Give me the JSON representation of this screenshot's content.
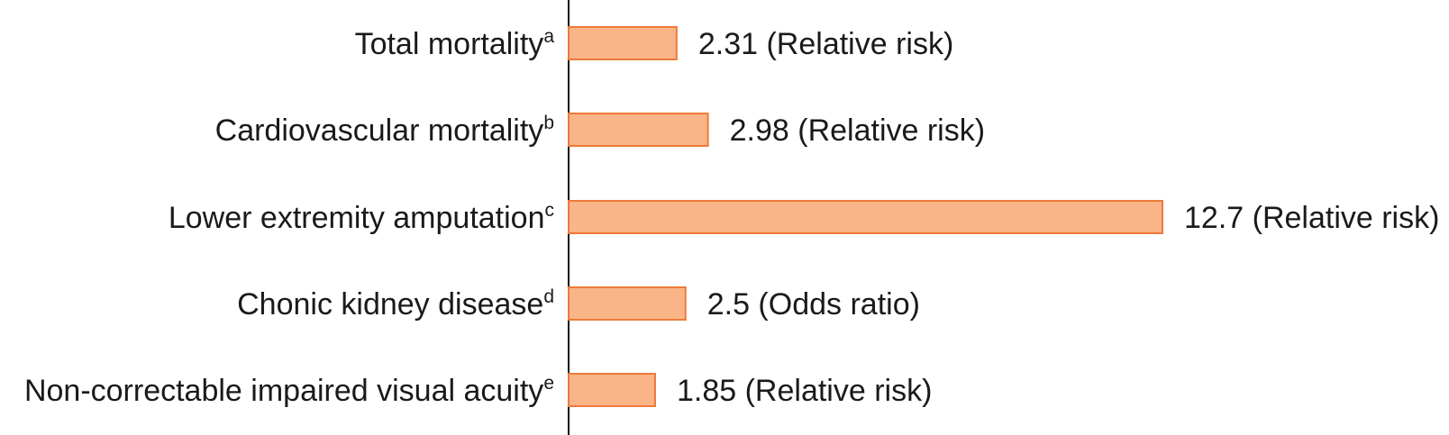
{
  "colors": {
    "bar_fill": "#f9b587",
    "bar_stroke": "#ee7a3b",
    "axis": "#111111",
    "text": "#1a1a1a"
  },
  "chart_data": {
    "type": "bar",
    "orientation": "horizontal",
    "title": "",
    "xlabel": "",
    "ylabel": "",
    "grid": false,
    "categories": [
      "Total mortality",
      "Cardiovascular mortality",
      "Lower extremity amputation",
      "Chonic kidney disease",
      "Non-correctable impaired visual acuity"
    ],
    "footnote_marks": [
      "a",
      "b",
      "c",
      "d",
      "e"
    ],
    "values": [
      2.31,
      2.98,
      12.7,
      2.5,
      1.85
    ],
    "value_labels": [
      "2.31 (Relative risk)",
      "2.98 (Relative risk)",
      "12.7 (Relative risk)",
      "2.5 (Odds ratio)",
      "1.85 (Relative risk)"
    ],
    "xlim": [
      0,
      12.7
    ]
  }
}
